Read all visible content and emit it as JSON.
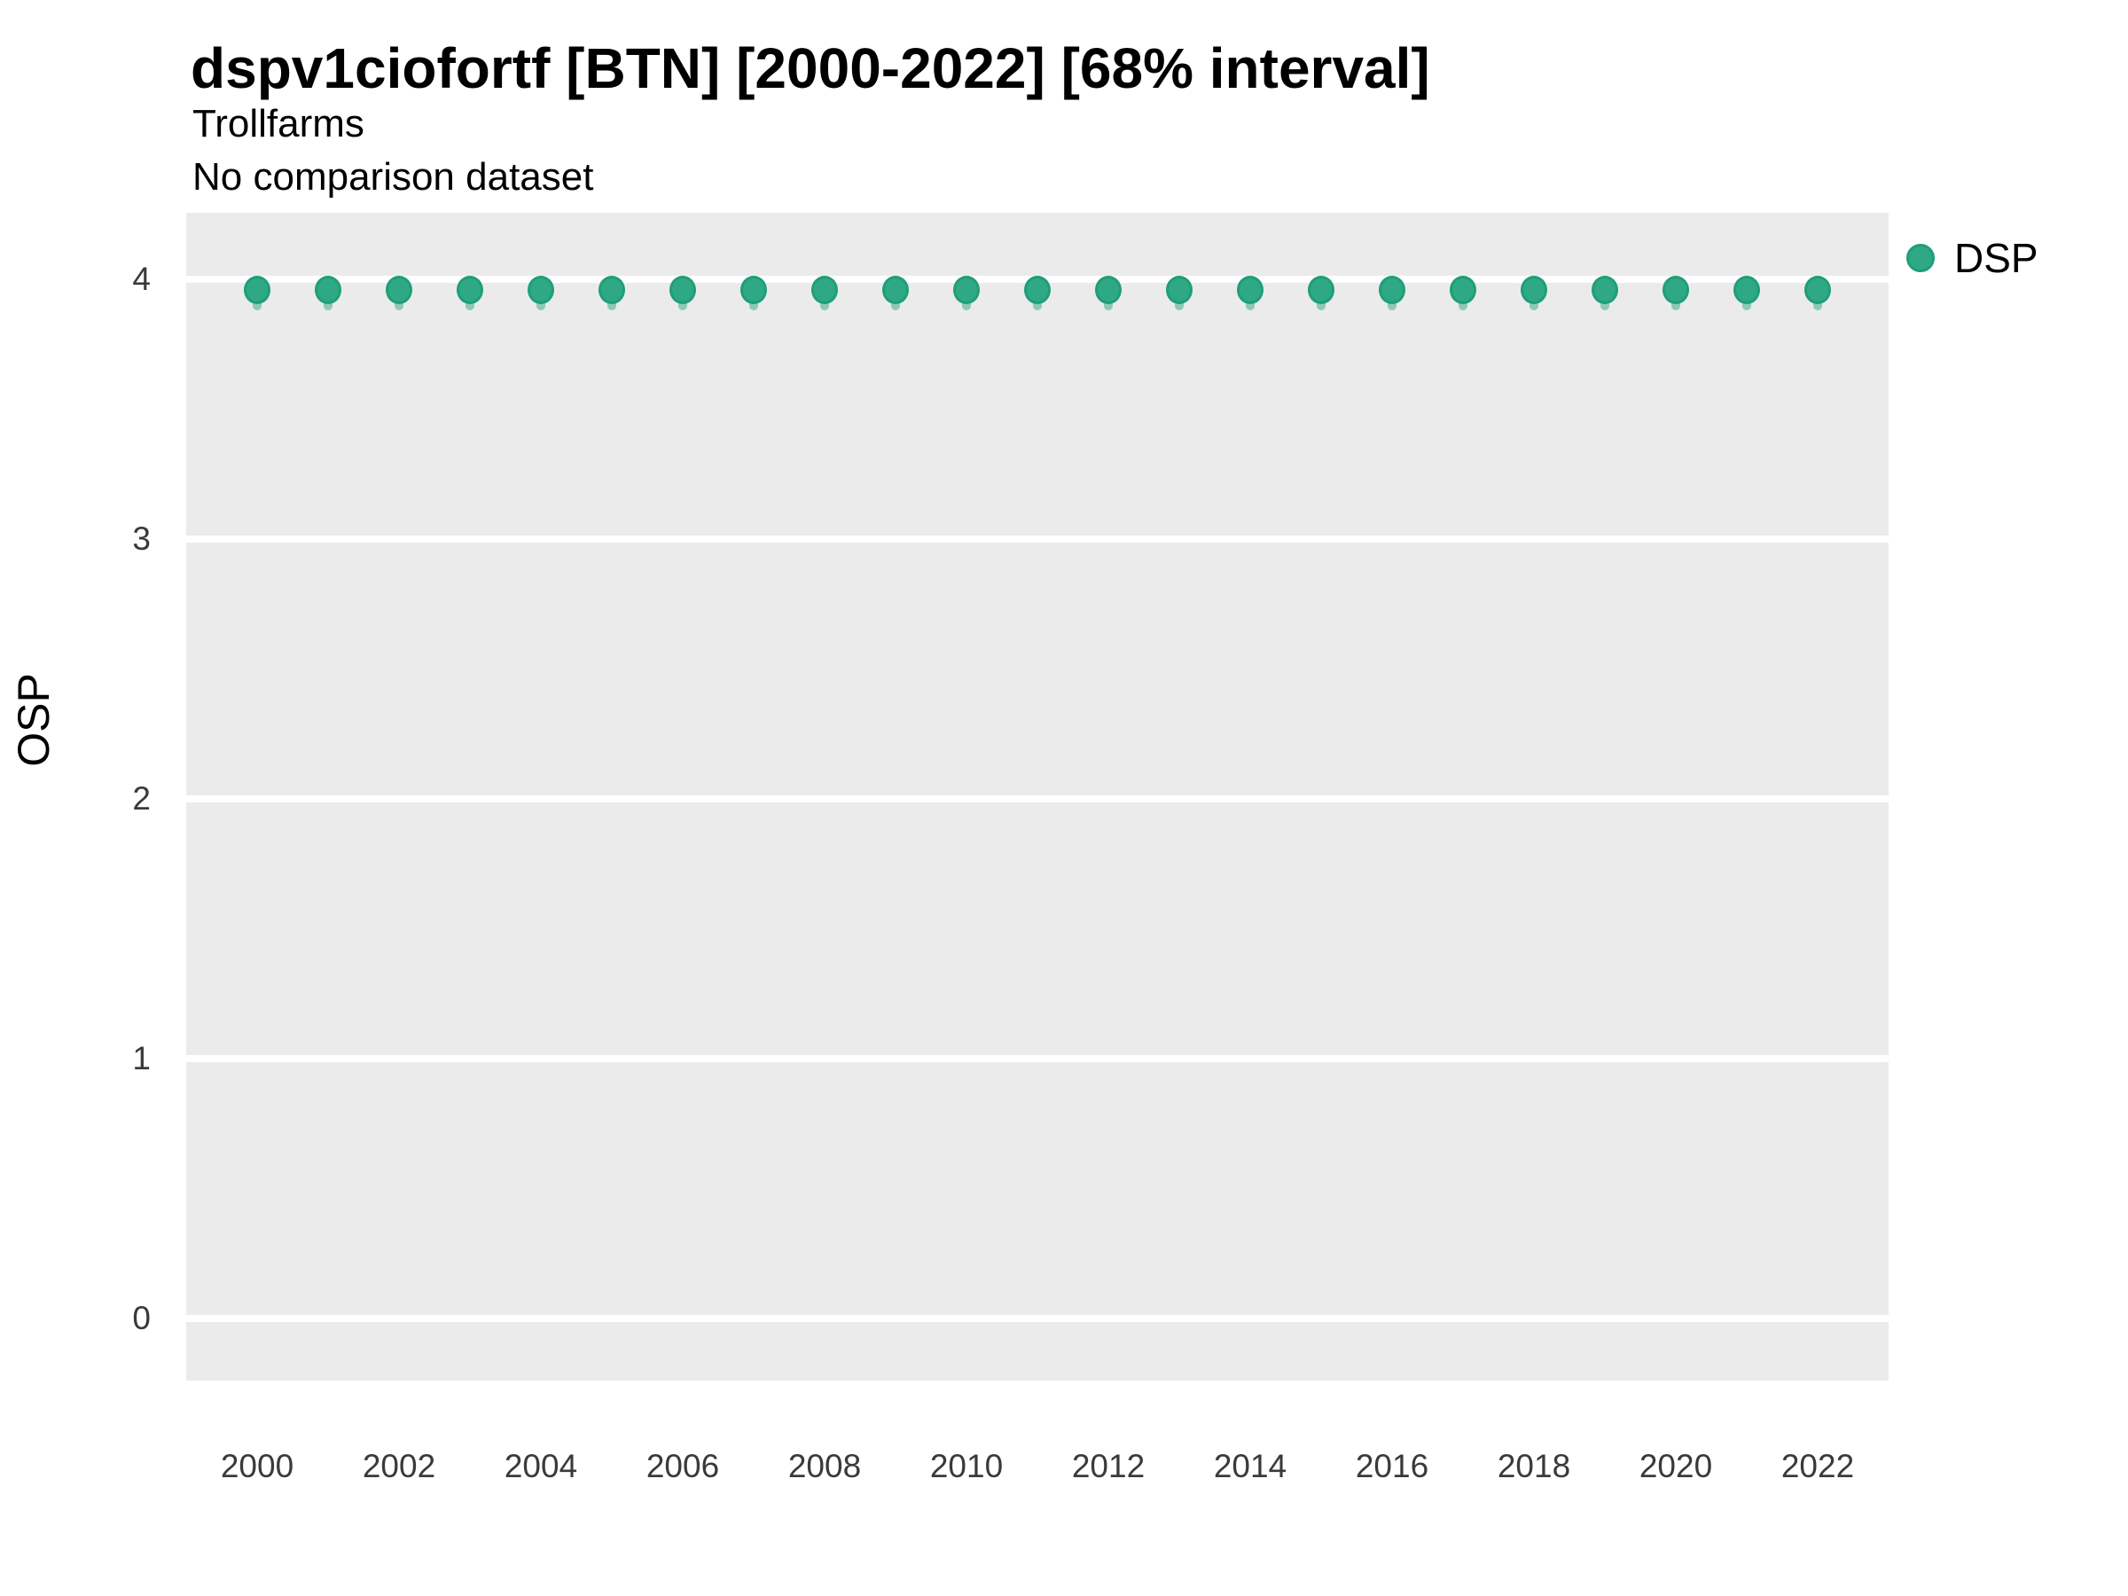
{
  "header": {
    "title": "dspv1ciofortf [BTN] [2000-2022] [68% interval]",
    "subtitle": "Trollfarms",
    "comparison_note": "No comparison dataset"
  },
  "axes": {
    "y_label": "OSP",
    "x_label": ""
  },
  "legend": {
    "position": "right-top",
    "items": [
      {
        "label": "DSP",
        "marker": "circle-icon",
        "color": "#2FA985"
      }
    ]
  },
  "colors": {
    "point_fill": "#2FA985",
    "point_border": "#1F9E78",
    "interval_band": "rgba(49,168,134,0.5)",
    "panel_background": "#EBEBEB",
    "gridline": "#FFFFFF",
    "text": "#000000"
  },
  "chart_data": {
    "type": "scatter",
    "title": "dspv1ciofortf [BTN] [2000-2022] [68% interval]",
    "subtitle": "Trollfarms",
    "note": "No comparison dataset",
    "xlabel": "",
    "ylabel": "OSP",
    "legend_position": "right",
    "grid": "white major gridlines on gray panel",
    "ylim": [
      -0.24,
      4.24
    ],
    "yticks": [
      0,
      1,
      2,
      3,
      4
    ],
    "xticks": [
      2000,
      2002,
      2004,
      2006,
      2008,
      2010,
      2012,
      2014,
      2016,
      2018,
      2020,
      2022
    ],
    "interval": {
      "level": "68%",
      "low": 3.88,
      "high": 4.04
    },
    "x": [
      2000,
      2001,
      2002,
      2003,
      2004,
      2005,
      2006,
      2007,
      2008,
      2009,
      2010,
      2011,
      2012,
      2013,
      2014,
      2015,
      2016,
      2017,
      2018,
      2019,
      2020,
      2021,
      2022
    ],
    "series": [
      {
        "name": "DSP",
        "values": [
          3.96,
          3.96,
          3.96,
          3.96,
          3.96,
          3.96,
          3.96,
          3.96,
          3.96,
          3.96,
          3.96,
          3.96,
          3.96,
          3.96,
          3.96,
          3.96,
          3.96,
          3.96,
          3.96,
          3.96,
          3.96,
          3.96,
          3.96
        ]
      }
    ]
  }
}
